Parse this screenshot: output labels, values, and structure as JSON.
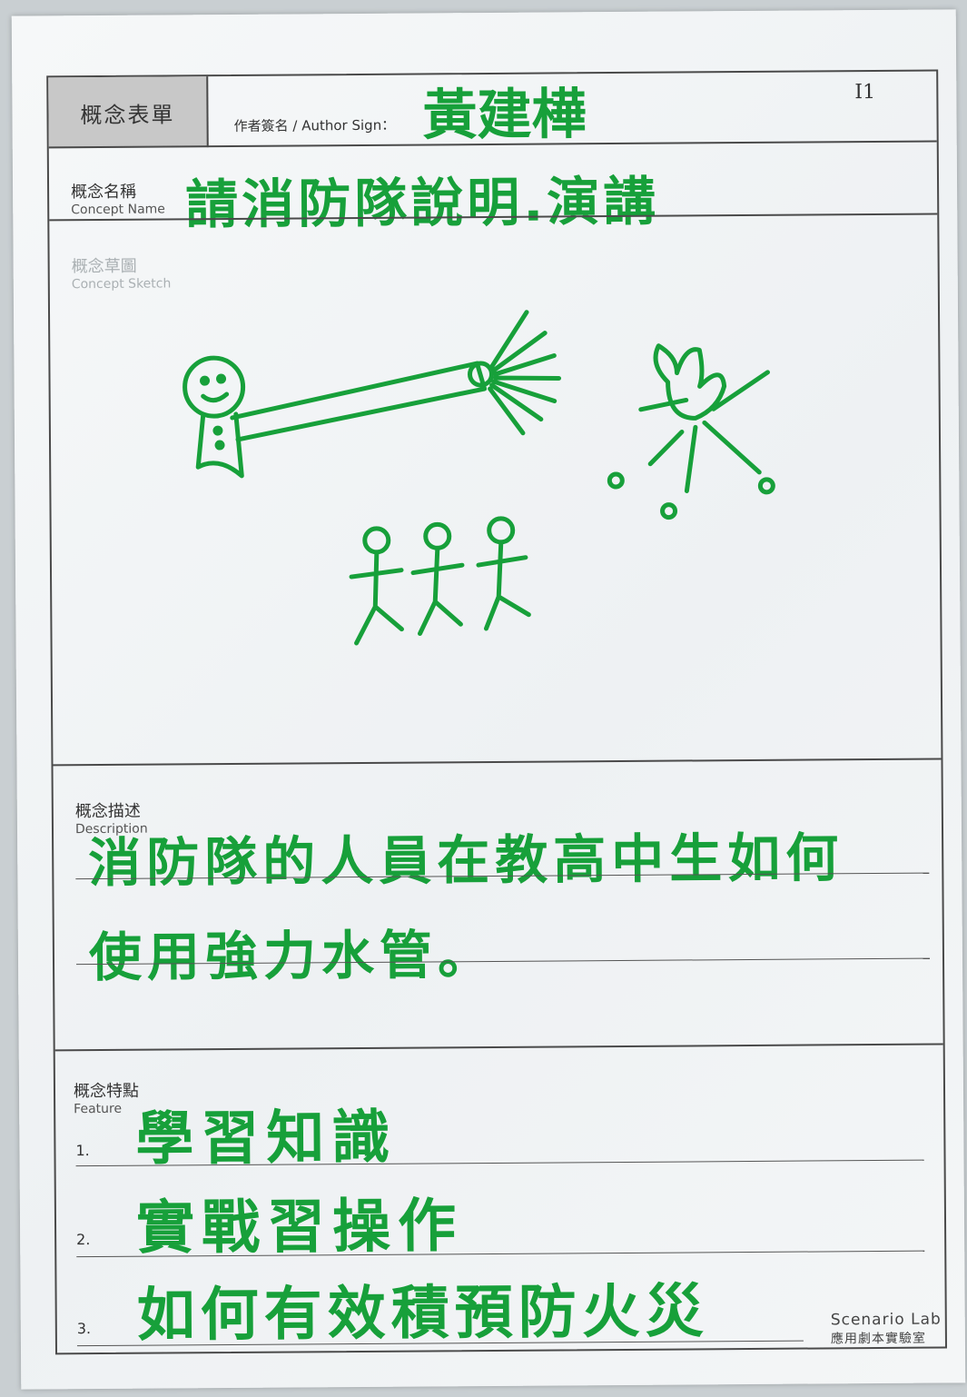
{
  "form": {
    "title": "概念表單",
    "id": "I1",
    "author_label": "作者簽名 / Author Sign：",
    "author_value": "黃建樺"
  },
  "concept_name": {
    "label_zh": "概念名稱",
    "label_en": "Concept Name",
    "value": "請消防隊說明.演講"
  },
  "concept_sketch": {
    "label_zh": "概念草圖",
    "label_en": "Concept Sketch"
  },
  "description": {
    "label_zh": "概念描述",
    "label_en": "Description",
    "line1": "消防隊的人員在教高中生如何",
    "line2": "使用強力水管。"
  },
  "feature": {
    "label_zh": "概念特點",
    "label_en": "Feature",
    "items": [
      {
        "num": "1.",
        "text": "學習知識"
      },
      {
        "num": "2.",
        "text": "實戰習操作"
      },
      {
        "num": "3.",
        "text": "如何有效積預防火災"
      }
    ]
  },
  "brand": {
    "name": "Scenario Lab",
    "sub": "應用劇本實驗室"
  },
  "colors": {
    "ink": "#17a03a",
    "frame": "#4a4a4a",
    "title_bg": "#c8c8c8"
  }
}
